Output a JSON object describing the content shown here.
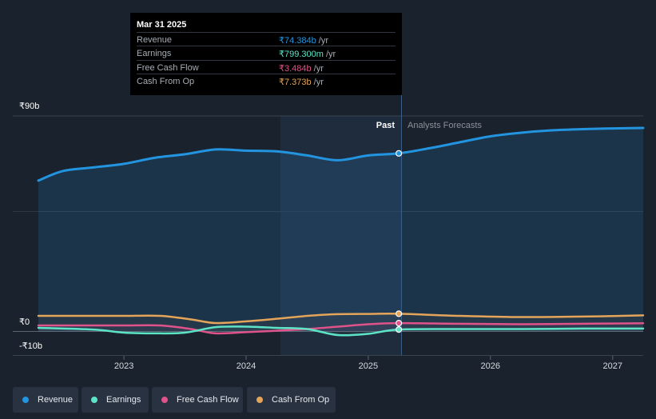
{
  "tooltip": {
    "date": "Mar 31 2025",
    "rows": [
      {
        "label": "Revenue",
        "value": "₹74.384b",
        "unit": "/yr",
        "color": "#2394df"
      },
      {
        "label": "Earnings",
        "value": "₹799.300m",
        "unit": "/yr",
        "color": "#5de4c7"
      },
      {
        "label": "Free Cash Flow",
        "value": "₹3.484b",
        "unit": "/yr",
        "color": "#e0528a"
      },
      {
        "label": "Cash From Op",
        "value": "₹7.373b",
        "unit": "/yr",
        "color": "#e4a55a"
      }
    ]
  },
  "chart_data": {
    "type": "area",
    "title": "",
    "xlabel": "",
    "ylabel": "",
    "y_tick_labels": [
      "₹90b",
      "₹0",
      "-₹10b"
    ],
    "ylim": [
      -10,
      90
    ],
    "xlim": [
      2022.3,
      2027.25
    ],
    "x_ticks": [
      {
        "label": "2023",
        "x": 2023.0
      },
      {
        "label": "2024",
        "x": 2024.0
      },
      {
        "label": "2025",
        "x": 2025.0
      },
      {
        "label": "2026",
        "x": 2026.0
      },
      {
        "label": "2027",
        "x": 2027.0
      }
    ],
    "past_label": "Past",
    "forecast_label": "Analysts Forecasts",
    "past_start": 2024.25,
    "divider_x": 2025.25,
    "series": [
      {
        "name": "Revenue",
        "color": "#2394df",
        "fill": true,
        "points": [
          [
            2022.3,
            63.0
          ],
          [
            2022.5,
            67.0
          ],
          [
            2022.75,
            68.5
          ],
          [
            2023.0,
            70.0
          ],
          [
            2023.25,
            72.5
          ],
          [
            2023.5,
            74.0
          ],
          [
            2023.75,
            76.0
          ],
          [
            2024.0,
            75.5
          ],
          [
            2024.25,
            75.2
          ],
          [
            2024.5,
            73.5
          ],
          [
            2024.75,
            71.5
          ],
          [
            2025.0,
            73.5
          ],
          [
            2025.25,
            74.38
          ],
          [
            2025.5,
            76.5
          ],
          [
            2025.75,
            79.0
          ],
          [
            2026.0,
            81.5
          ],
          [
            2026.25,
            83.0
          ],
          [
            2026.5,
            84.0
          ],
          [
            2026.75,
            84.5
          ],
          [
            2027.0,
            84.8
          ],
          [
            2027.25,
            85.0
          ]
        ]
      },
      {
        "name": "Earnings",
        "color": "#5de4c7",
        "fill": false,
        "points": [
          [
            2022.3,
            1.5
          ],
          [
            2022.75,
            0.8
          ],
          [
            2023.0,
            -0.5
          ],
          [
            2023.25,
            -0.8
          ],
          [
            2023.5,
            -0.5
          ],
          [
            2023.75,
            1.8
          ],
          [
            2024.0,
            2.0
          ],
          [
            2024.25,
            1.5
          ],
          [
            2024.5,
            1.0
          ],
          [
            2024.75,
            -1.5
          ],
          [
            2025.0,
            -1.0
          ],
          [
            2025.25,
            0.8
          ],
          [
            2025.75,
            1.0
          ],
          [
            2026.25,
            1.0
          ],
          [
            2026.75,
            1.2
          ],
          [
            2027.25,
            1.2
          ]
        ]
      },
      {
        "name": "Free Cash Flow",
        "color": "#e0528a",
        "fill": false,
        "points": [
          [
            2022.3,
            2.5
          ],
          [
            2022.75,
            2.5
          ],
          [
            2023.0,
            2.5
          ],
          [
            2023.3,
            2.5
          ],
          [
            2023.55,
            1.0
          ],
          [
            2023.75,
            -0.8
          ],
          [
            2024.0,
            -0.3
          ],
          [
            2024.25,
            0.3
          ],
          [
            2024.5,
            1.0
          ],
          [
            2024.75,
            2.0
          ],
          [
            2025.0,
            3.0
          ],
          [
            2025.25,
            3.48
          ],
          [
            2025.75,
            3.2
          ],
          [
            2026.25,
            3.0
          ],
          [
            2026.75,
            3.2
          ],
          [
            2027.25,
            3.4
          ]
        ]
      },
      {
        "name": "Cash From Op",
        "color": "#e4a55a",
        "fill": false,
        "points": [
          [
            2022.3,
            6.5
          ],
          [
            2022.75,
            6.5
          ],
          [
            2023.0,
            6.5
          ],
          [
            2023.3,
            6.5
          ],
          [
            2023.55,
            5.0
          ],
          [
            2023.75,
            3.5
          ],
          [
            2024.0,
            4.2
          ],
          [
            2024.25,
            5.3
          ],
          [
            2024.5,
            6.5
          ],
          [
            2024.75,
            7.2
          ],
          [
            2025.0,
            7.3
          ],
          [
            2025.25,
            7.37
          ],
          [
            2025.75,
            6.5
          ],
          [
            2026.25,
            6.0
          ],
          [
            2026.75,
            6.2
          ],
          [
            2027.25,
            6.7
          ]
        ]
      }
    ]
  },
  "legend": [
    {
      "label": "Revenue",
      "color": "#2394df"
    },
    {
      "label": "Earnings",
      "color": "#5de4c7"
    },
    {
      "label": "Free Cash Flow",
      "color": "#e0528a"
    },
    {
      "label": "Cash From Op",
      "color": "#e4a55a"
    }
  ]
}
